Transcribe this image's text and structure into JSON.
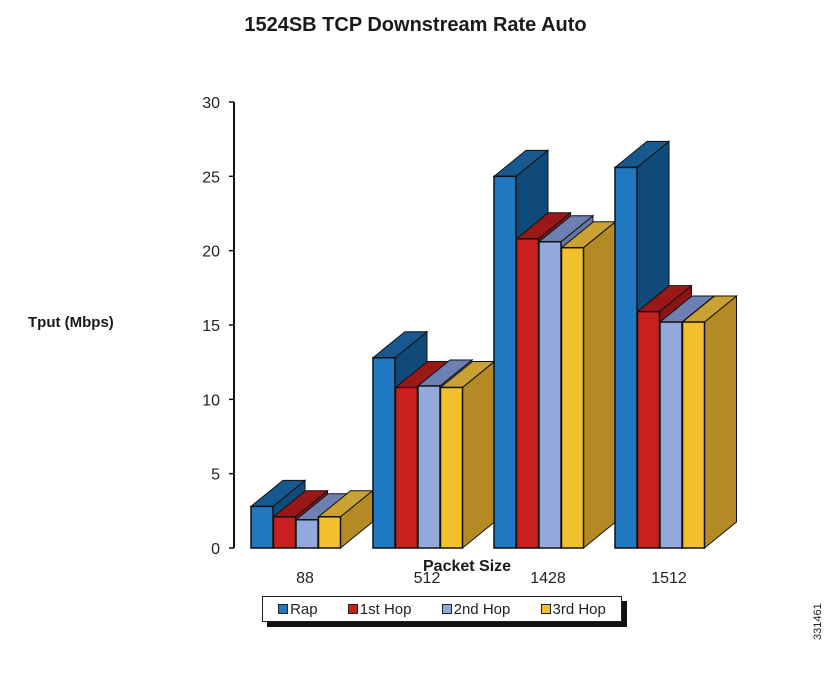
{
  "chart_data": {
    "type": "bar",
    "title": "1524SB TCP Downstream Rate Auto",
    "xlabel": "Packet Size",
    "ylabel": "Tput (Mbps)",
    "ylim": [
      0,
      30
    ],
    "yticks": [
      "0",
      "5",
      "10",
      "15",
      "20",
      "25",
      "30"
    ],
    "categories": [
      "88",
      "512",
      "1428",
      "1512"
    ],
    "series": [
      {
        "name": "Rap",
        "values": [
          2.8,
          12.8,
          25.0,
          25.6
        ],
        "color": "#1f78c0",
        "top": "#17598f",
        "side": "#0f4a78"
      },
      {
        "name": "1st Hop",
        "values": [
          2.1,
          10.8,
          20.8,
          15.9
        ],
        "color": "#c8201e",
        "top": "#9a1818",
        "side": "#8a1515"
      },
      {
        "name": "2nd Hop",
        "values": [
          1.9,
          10.9,
          20.6,
          15.2
        ],
        "color": "#93a9dc",
        "top": "#6d7fb3",
        "side": "#66779f"
      },
      {
        "name": "3rd Hop",
        "values": [
          2.1,
          10.8,
          20.2,
          15.2
        ],
        "color": "#f2c02c",
        "top": "#c9a233",
        "side": "#b38a24"
      }
    ],
    "legend_position": "bottom",
    "grid": false,
    "style": "3d-clustered-column"
  },
  "figure_code": "331461"
}
